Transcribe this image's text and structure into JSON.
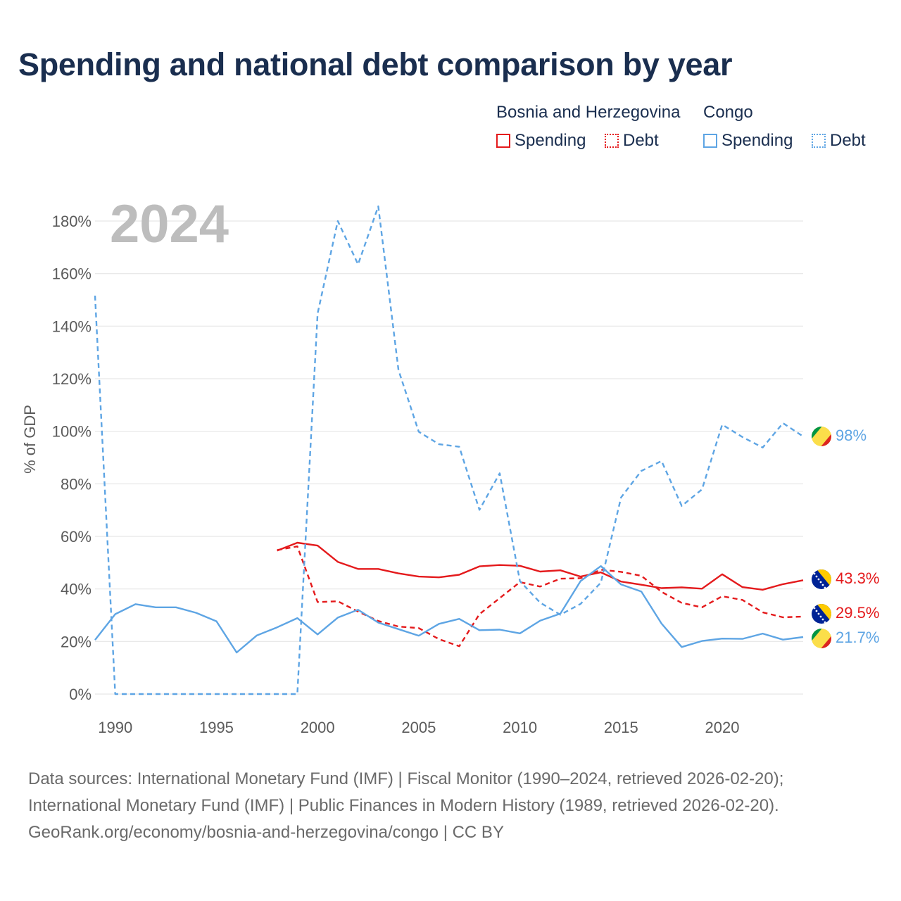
{
  "title": "Spending and national debt comparison by year",
  "legend": {
    "groups": [
      {
        "name": "Bosnia and Herzegovina",
        "color": "#e41a1c",
        "items": [
          "Spending",
          "Debt"
        ]
      },
      {
        "name": "Congo",
        "color": "#5ea5e4",
        "items": [
          "Spending",
          "Debt"
        ]
      }
    ]
  },
  "chart_data": {
    "type": "line",
    "year_label": "2024",
    "ylabel": "% of GDP",
    "xlim": [
      1989,
      2024
    ],
    "ylim": [
      0,
      180
    ],
    "yticks": [
      0,
      20,
      40,
      60,
      80,
      100,
      120,
      140,
      160,
      180
    ],
    "ytick_labels": [
      "0%",
      "20%",
      "40%",
      "60%",
      "80%",
      "100%",
      "120%",
      "140%",
      "160%",
      "180%"
    ],
    "xticks": [
      1990,
      1995,
      2000,
      2005,
      2010,
      2015,
      2020
    ],
    "xtick_labels": [
      "1990",
      "1995",
      "2000",
      "2005",
      "2010",
      "2015",
      "2020"
    ],
    "series": [
      {
        "name": "Bosnia and Herzegovina Spending",
        "country": "Bosnia and Herzegovina",
        "measure": "Spending",
        "color": "#e41a1c",
        "dashed": false,
        "x": [
          1998,
          1999,
          2000,
          2001,
          2002,
          2003,
          2004,
          2005,
          2006,
          2007,
          2008,
          2009,
          2010,
          2011,
          2012,
          2013,
          2014,
          2015,
          2016,
          2017,
          2018,
          2019,
          2020,
          2021,
          2022,
          2023,
          2024
        ],
        "values": [
          54.6,
          57.6,
          56.5,
          50.3,
          47.6,
          47.6,
          45.9,
          44.7,
          44.4,
          45.4,
          48.6,
          49.1,
          48.8,
          46.6,
          47.1,
          44.7,
          46.3,
          42.8,
          41.6,
          40.3,
          40.6,
          40.1,
          45.6,
          40.7,
          39.7,
          41.8,
          43.3
        ],
        "end_label": "43.3%"
      },
      {
        "name": "Bosnia and Herzegovina Debt",
        "country": "Bosnia and Herzegovina",
        "measure": "Debt",
        "color": "#e41a1c",
        "dashed": true,
        "x": [
          1998,
          1999,
          2000,
          2001,
          2002,
          2003,
          2004,
          2005,
          2006,
          2007,
          2008,
          2009,
          2010,
          2011,
          2012,
          2013,
          2014,
          2015,
          2016,
          2017,
          2018,
          2019,
          2020,
          2021,
          2022,
          2023,
          2024
        ],
        "values": [
          54.8,
          56.2,
          35.0,
          35.3,
          31.4,
          27.8,
          25.7,
          25.1,
          20.9,
          18.2,
          30.4,
          36.5,
          42.6,
          40.9,
          43.9,
          44.1,
          47.3,
          46.5,
          45.0,
          38.9,
          34.7,
          33.0,
          37.2,
          35.8,
          31.1,
          29.2,
          29.5
        ],
        "end_label": "29.5%"
      },
      {
        "name": "Congo Spending",
        "country": "Congo",
        "measure": "Spending",
        "color": "#5ea5e4",
        "dashed": false,
        "x": [
          1989,
          1990,
          1991,
          1992,
          1993,
          1994,
          1995,
          1996,
          1997,
          1998,
          1999,
          2000,
          2001,
          2002,
          2003,
          2004,
          2005,
          2006,
          2007,
          2008,
          2009,
          2010,
          2011,
          2012,
          2013,
          2014,
          2015,
          2016,
          2017,
          2018,
          2019,
          2020,
          2021,
          2022,
          2023,
          2024
        ],
        "values": [
          20.6,
          30.4,
          34.2,
          33.0,
          33.0,
          30.9,
          27.7,
          15.8,
          22.3,
          25.4,
          28.9,
          22.7,
          29.1,
          32.1,
          27.2,
          24.7,
          22.2,
          26.7,
          28.6,
          24.3,
          24.5,
          23.1,
          27.9,
          30.6,
          43.0,
          48.7,
          41.7,
          39.0,
          26.8,
          17.9,
          20.2,
          21.1,
          21.0,
          23.0,
          20.7,
          21.7
        ],
        "end_label": "21.7%"
      },
      {
        "name": "Congo Debt",
        "country": "Congo",
        "measure": "Debt",
        "color": "#5ea5e4",
        "dashed": true,
        "x": [
          1989,
          1990,
          1991,
          1992,
          1993,
          1994,
          1995,
          1996,
          1997,
          1998,
          1999,
          2000,
          2001,
          2002,
          2003,
          2004,
          2005,
          2006,
          2007,
          2008,
          2009,
          2010,
          2011,
          2012,
          2013,
          2014,
          2015,
          2016,
          2017,
          2018,
          2019,
          2020,
          2021,
          2022,
          2023,
          2024
        ],
        "values": [
          151.6,
          0,
          0,
          0,
          0,
          0,
          0,
          0,
          0,
          0,
          0,
          144.8,
          180.0,
          163.5,
          185.6,
          123.3,
          99.8,
          95.1,
          94.1,
          70.1,
          84.0,
          43.0,
          34.8,
          30.2,
          34.3,
          42.4,
          74.8,
          84.9,
          88.7,
          71.6,
          77.9,
          102.5,
          97.8,
          93.8,
          103.1,
          98.0
        ],
        "end_label": "98%"
      }
    ]
  },
  "source": {
    "line1": "Data sources: International Monetary Fund (IMF) | Fiscal Monitor (1990–2024, retrieved 2026-02-20);",
    "line2": "International Monetary Fund (IMF) | Public Finances in Modern History (1989, retrieved 2026-02-20).",
    "line3": "GeoRank.org/economy/bosnia-and-herzegovina/congo | CC BY"
  }
}
